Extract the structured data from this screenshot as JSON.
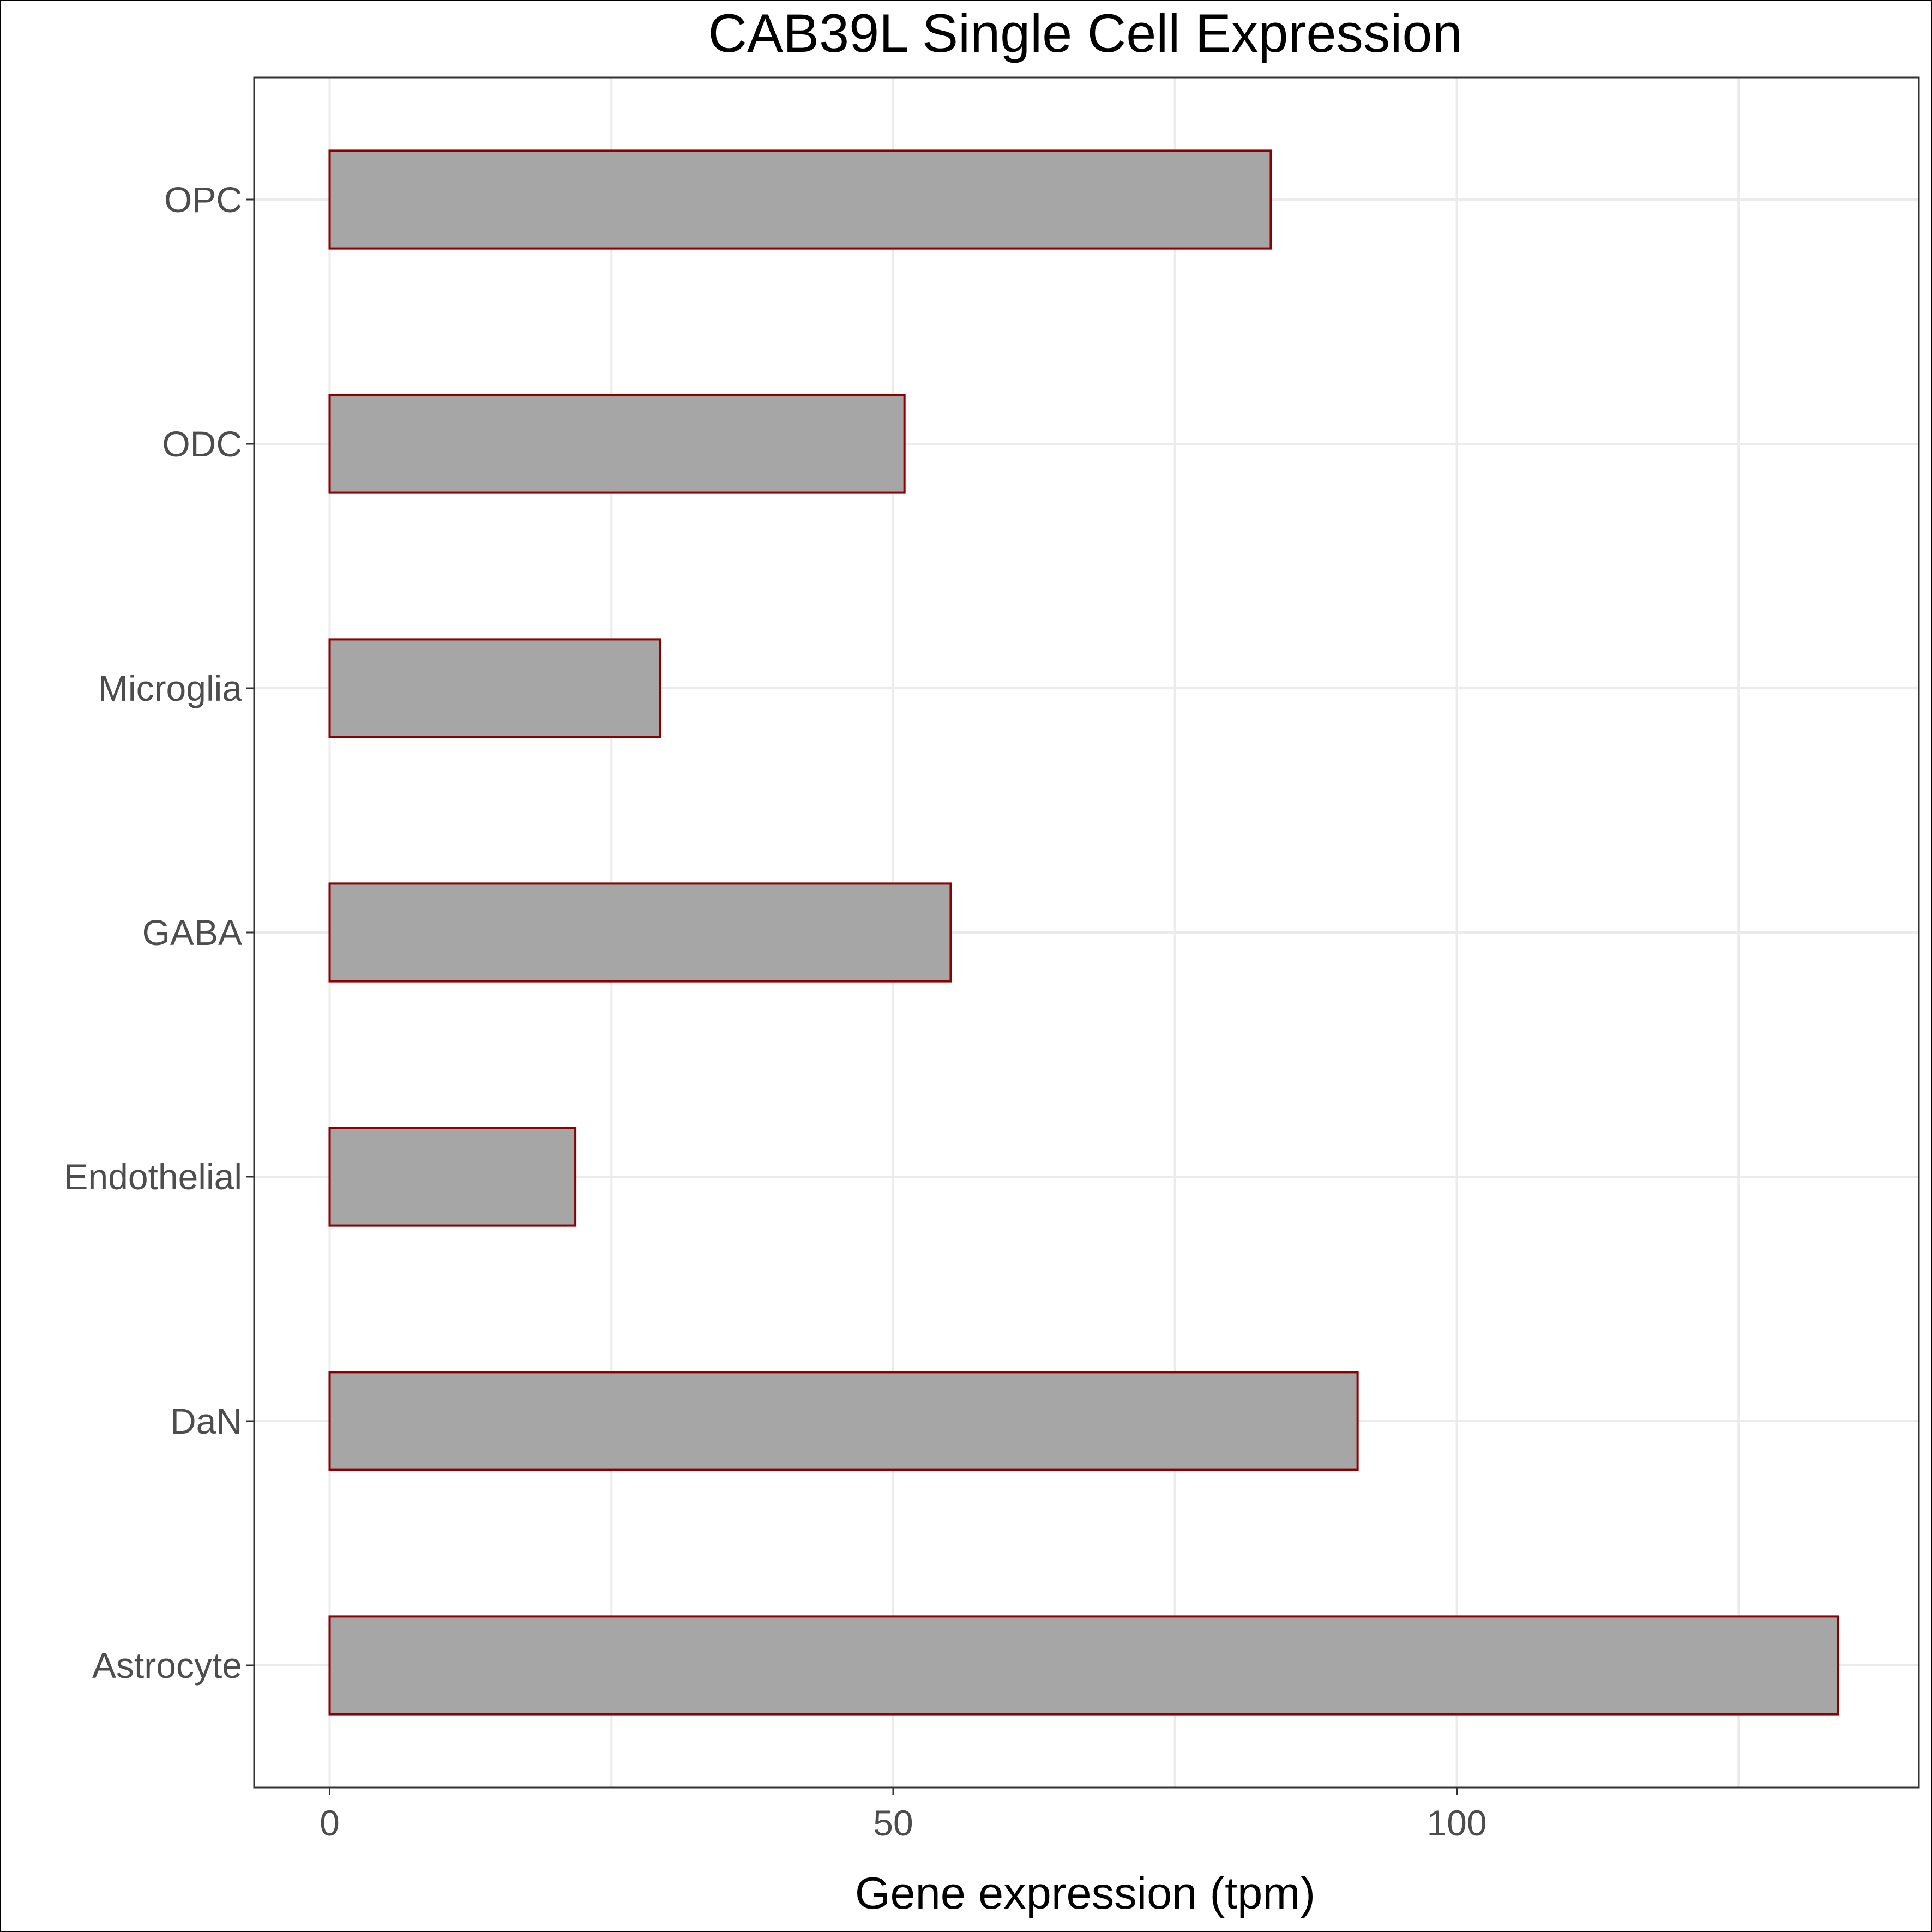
{
  "chart_data": {
    "type": "bar",
    "orientation": "horizontal",
    "title": "CAB39L Single Cell Expression",
    "xlabel": "Gene expression (tpm)",
    "ylabel": "",
    "categories": [
      "Astrocyte",
      "DaN",
      "Endothelial",
      "GABA",
      "Microglia",
      "ODC",
      "OPC"
    ],
    "values": [
      133.8,
      91.2,
      21.8,
      55.1,
      29.3,
      51.0,
      83.5
    ],
    "xlim": [
      -6.7,
      141.0
    ],
    "xticks": [
      0,
      50,
      100
    ],
    "xtick_labels": [
      "0",
      "50",
      "100"
    ],
    "grid": true,
    "legend": "none",
    "colors": {
      "bar_fill": "#a6a6a6",
      "bar_outline": "#8b0000",
      "grid": "#ebebeb",
      "panel_border": "#333333",
      "tick_text": "#4d4d4d"
    }
  }
}
